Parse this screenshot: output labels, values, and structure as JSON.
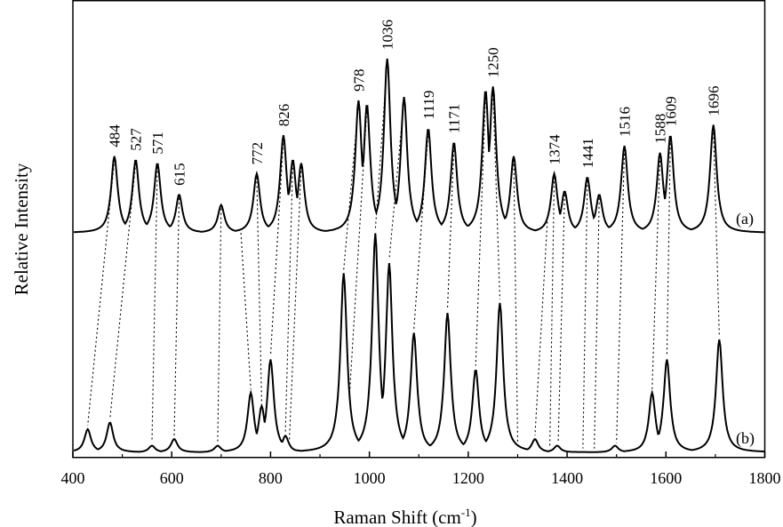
{
  "chart_data": {
    "type": "line",
    "xlabel": "Raman Shift (cm",
    "xlabel_sup": "-1",
    "xlabel_close": ")",
    "ylabel": "Relative Intensity",
    "xlim": [
      400,
      1800
    ],
    "ylim": [
      0,
      1
    ],
    "x_ticks": [
      400,
      600,
      800,
      1000,
      1200,
      1400,
      1600,
      1800
    ],
    "x_tick_labels": [
      "400",
      "600",
      "800",
      "1000",
      "1200",
      "1400",
      "1600",
      "1800"
    ],
    "grid": false,
    "line_color": "#000000",
    "correlation_line_style": "dotted",
    "series": [
      {
        "name": "(a)",
        "baseline": 0.5,
        "peaks": [
          {
            "x": 484,
            "y": 0.72,
            "label": "484"
          },
          {
            "x": 527,
            "y": 0.71,
            "label": "527"
          },
          {
            "x": 571,
            "y": 0.7,
            "label": "571"
          },
          {
            "x": 615,
            "y": 0.61,
            "label": "615"
          },
          {
            "x": 700,
            "y": 0.58
          },
          {
            "x": 772,
            "y": 0.67,
            "label": "772"
          },
          {
            "x": 826,
            "y": 0.78,
            "label": "826"
          },
          {
            "x": 845,
            "y": 0.71
          },
          {
            "x": 862,
            "y": 0.7
          },
          {
            "x": 978,
            "y": 0.88,
            "label": "978"
          },
          {
            "x": 995,
            "y": 0.87
          },
          {
            "x": 1036,
            "y": 1.0,
            "label": "1036"
          },
          {
            "x": 1070,
            "y": 0.89
          },
          {
            "x": 1119,
            "y": 0.8,
            "label": "1119"
          },
          {
            "x": 1171,
            "y": 0.76,
            "label": "1171"
          },
          {
            "x": 1235,
            "y": 0.91
          },
          {
            "x": 1250,
            "y": 0.92,
            "label": "1250"
          },
          {
            "x": 1292,
            "y": 0.72
          },
          {
            "x": 1374,
            "y": 0.67,
            "label": "1374"
          },
          {
            "x": 1395,
            "y": 0.62
          },
          {
            "x": 1441,
            "y": 0.66,
            "label": "1441"
          },
          {
            "x": 1465,
            "y": 0.61
          },
          {
            "x": 1516,
            "y": 0.75,
            "label": "1516"
          },
          {
            "x": 1588,
            "y": 0.73,
            "label": "1588"
          },
          {
            "x": 1609,
            "y": 0.78,
            "label": "1609"
          },
          {
            "x": 1696,
            "y": 0.81,
            "label": "1696"
          }
        ]
      },
      {
        "name": "(b)",
        "baseline": 0.0,
        "peaks": [
          {
            "x": 430,
            "y": 0.07
          },
          {
            "x": 475,
            "y": 0.09
          },
          {
            "x": 560,
            "y": 0.02
          },
          {
            "x": 605,
            "y": 0.04
          },
          {
            "x": 693,
            "y": 0.02
          },
          {
            "x": 760,
            "y": 0.18
          },
          {
            "x": 782,
            "y": 0.14
          },
          {
            "x": 800,
            "y": 0.28
          },
          {
            "x": 830,
            "y": 0.05
          },
          {
            "x": 948,
            "y": 0.54
          },
          {
            "x": 1012,
            "y": 0.66
          },
          {
            "x": 1040,
            "y": 0.57
          },
          {
            "x": 1090,
            "y": 0.36
          },
          {
            "x": 1158,
            "y": 0.42
          },
          {
            "x": 1215,
            "y": 0.25
          },
          {
            "x": 1264,
            "y": 0.45
          },
          {
            "x": 1335,
            "y": 0.04
          },
          {
            "x": 1380,
            "y": 0.02
          },
          {
            "x": 1497,
            "y": 0.02
          },
          {
            "x": 1572,
            "y": 0.18
          },
          {
            "x": 1602,
            "y": 0.28
          },
          {
            "x": 1708,
            "y": 0.34
          }
        ]
      }
    ],
    "correlations": [
      [
        484,
        430
      ],
      [
        527,
        475
      ],
      [
        571,
        560
      ],
      [
        615,
        605
      ],
      [
        700,
        693
      ],
      [
        740,
        760
      ],
      [
        772,
        782
      ],
      [
        826,
        800
      ],
      [
        845,
        830
      ],
      [
        862,
        838
      ],
      [
        978,
        948
      ],
      [
        995,
        960
      ],
      [
        1036,
        1012
      ],
      [
        1070,
        1040
      ],
      [
        1119,
        1090
      ],
      [
        1171,
        1158
      ],
      [
        1235,
        1215
      ],
      [
        1250,
        1264
      ],
      [
        1292,
        1300
      ],
      [
        1360,
        1335
      ],
      [
        1374,
        1365
      ],
      [
        1395,
        1382
      ],
      [
        1441,
        1432
      ],
      [
        1465,
        1455
      ],
      [
        1516,
        1500
      ],
      [
        1588,
        1572
      ],
      [
        1609,
        1602
      ],
      [
        1696,
        1708
      ]
    ]
  }
}
